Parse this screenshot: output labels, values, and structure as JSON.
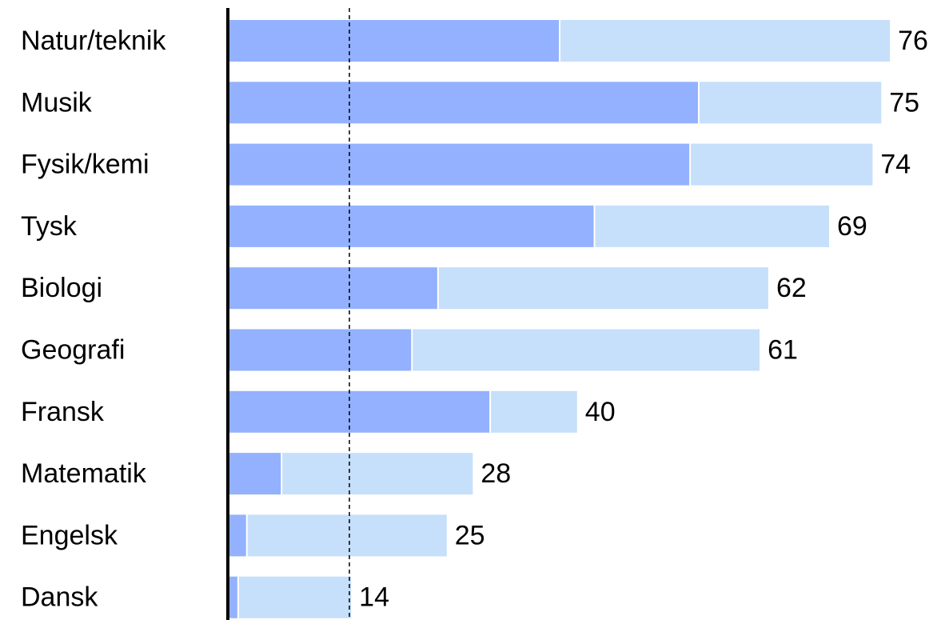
{
  "chart_data": {
    "type": "bar",
    "orientation": "horizontal",
    "stacked": true,
    "categories": [
      "Natur/teknik",
      "Musik",
      "Fysik/kemi",
      "Tysk",
      "Biologi",
      "Geografi",
      "Fransk",
      "Matematik",
      "Engelsk",
      "Dansk"
    ],
    "series": [
      {
        "values": [
          38,
          54,
          53,
          42,
          24,
          21,
          30,
          6,
          2,
          1
        ]
      },
      {
        "values": [
          38,
          21,
          21,
          27,
          38,
          40,
          10,
          22,
          23,
          13
        ]
      }
    ],
    "totals": [
      76,
      75,
      74,
      69,
      62,
      61,
      40,
      28,
      25,
      14
    ],
    "reference_line": 18,
    "xlim": [
      0,
      100
    ],
    "grid": false,
    "legend": "none",
    "colors": {
      "series_1": "#93b1fe",
      "series_2": "#c6dffb",
      "axis": "#000000",
      "reference_line": "#000000",
      "separator": "#ffffff"
    }
  }
}
